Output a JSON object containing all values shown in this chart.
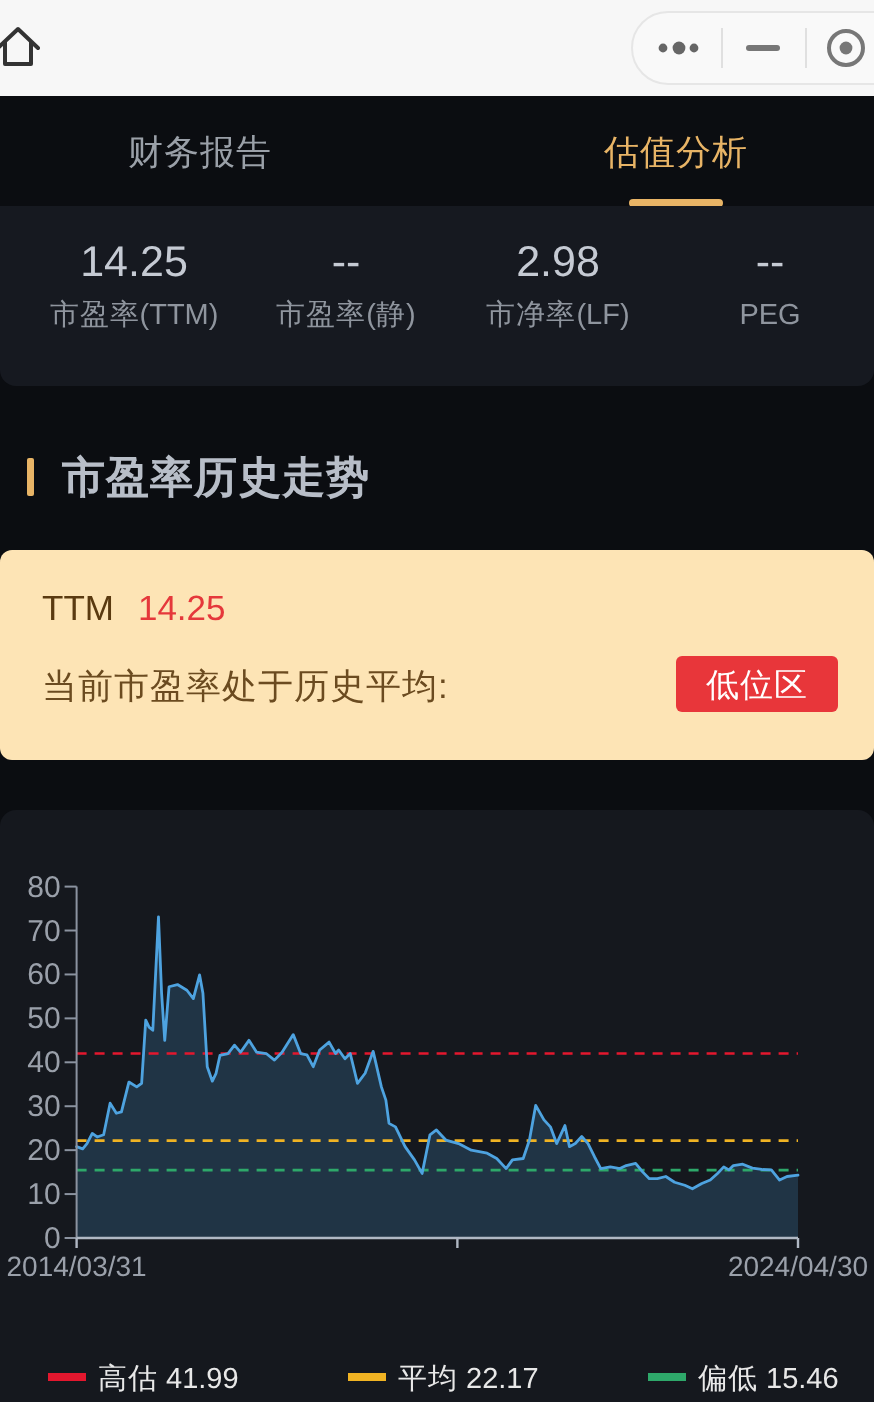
{
  "chart_data": [
    {
      "type": "other",
      "annotations": [
        "财务报告",
        "估值分析"
      ]
    },
    {
      "type": "other",
      "annotations": [
        "14.25",
        "--",
        "2.98",
        "--",
        "市盈率(TTM)",
        "市盈率(静)",
        "市净率(LF)",
        "PEG"
      ]
    },
    {
      "type": "other",
      "title": "市盈率历史走势",
      "annotations": [
        "TTM",
        "14.25",
        "当前市盈率处于历史平均:",
        "低位区"
      ]
    },
    {
      "type": "area",
      "color": "#4ea3e0",
      "x": [
        "2014-03-31",
        "2014-05-01",
        "2014-05-23",
        "2014-06-19",
        "2014-07-14",
        "2014-08-16",
        "2014-09-18",
        "2014-10-20",
        "2014-11-15",
        "2014-12-23",
        "2015-02-01",
        "2015-02-26",
        "2015-03-19",
        "2015-04-05",
        "2015-04-24",
        "2015-05-23",
        "2015-06-08",
        "2015-06-24",
        "2015-07-16",
        "2015-08-28",
        "2015-10-15",
        "2015-11-17",
        "2015-12-19",
        "2016-01-05",
        "2016-01-27",
        "2016-02-22",
        "2016-03-12",
        "2016-04-01",
        "2016-05-12",
        "2016-06-14",
        "2016-07-15",
        "2016-08-27",
        "2016-10-05",
        "2016-11-23",
        "2017-01-04",
        "2017-02-12",
        "2017-04-10",
        "2017-05-18",
        "2017-06-19",
        "2017-07-21",
        "2017-08-23",
        "2017-10-10",
        "2017-11-12",
        "2017-11-28",
        "2017-12-30",
        "2018-01-26",
        "2018-03-04",
        "2018-04-12",
        "2018-05-23",
        "2018-07-04",
        "2018-07-27",
        "2018-08-12",
        "2018-09-14",
        "2018-11-02",
        "2018-12-20",
        "2019-01-28",
        "2019-03-09",
        "2019-04-11",
        "2019-05-29",
        "2019-08-02",
        "2019-10-06",
        "2019-12-26",
        "2020-02-13",
        "2020-04-01",
        "2020-05-03",
        "2020-06-27",
        "2020-07-29",
        "2020-08-30",
        "2020-10-11",
        "2020-11-13",
        "2020-12-15",
        "2021-01-26",
        "2021-02-18",
        "2021-03-20",
        "2021-04-22",
        "2021-05-24",
        "2021-06-26",
        "2021-07-28",
        "2021-09-15",
        "2021-11-03",
        "2021-12-05",
        "2022-01-22",
        "2022-02-28",
        "2022-04-02",
        "2022-05-13",
        "2022-06-25",
        "2022-08-09",
        "2022-09-30",
        "2022-11-08",
        "2022-12-26",
        "2023-02-07",
        "2023-03-16",
        "2023-04-17",
        "2023-05-13",
        "2023-06-05",
        "2023-07-23",
        "2023-09-10",
        "2023-10-28",
        "2023-12-16",
        "2024-01-27",
        "2024-03-05",
        "2024-04-30"
      ],
      "values": [
        20.8,
        20.3,
        21.5,
        23.8,
        23.0,
        23.5,
        30.7,
        28.4,
        28.7,
        35.5,
        34.4,
        35.2,
        49.6,
        48.0,
        47.3,
        73.1,
        55.7,
        45.0,
        57.2,
        57.7,
        56.4,
        54.5,
        59.9,
        55.7,
        39.0,
        35.7,
        37.5,
        41.6,
        42.0,
        43.9,
        42.3,
        45.0,
        42.3,
        42.0,
        40.5,
        42.3,
        46.3,
        42.0,
        41.7,
        39.0,
        42.8,
        44.6,
        42.0,
        42.8,
        40.8,
        42.0,
        35.2,
        37.5,
        42.5,
        34.4,
        31.4,
        26.1,
        25.3,
        20.8,
        17.8,
        14.7,
        23.5,
        24.6,
        22.3,
        21.5,
        20.0,
        19.3,
        18.1,
        15.8,
        17.8,
        18.1,
        22.3,
        30.2,
        26.9,
        25.3,
        21.5,
        25.6,
        20.8,
        21.5,
        23.1,
        21.5,
        18.5,
        15.8,
        16.2,
        15.8,
        16.5,
        17.0,
        15.0,
        13.5,
        13.5,
        14.0,
        12.7,
        12.0,
        11.2,
        12.4,
        13.2,
        14.7,
        16.2,
        15.5,
        16.5,
        16.8,
        15.9,
        15.6,
        15.5,
        13.2,
        14.0,
        14.3
      ],
      "xlim": [
        "2014-03-31",
        "2024-04-30"
      ],
      "xticks": [
        {
          "value": "2014-03-31",
          "label": "2014/03/31"
        },
        {
          "value": "2019-07-27",
          "label": null
        },
        {
          "value": "2024-04-30",
          "label": "2024/04/30"
        }
      ],
      "ylim": [
        0,
        80
      ],
      "yticks": [
        0,
        10,
        20,
        30,
        40,
        50,
        60,
        70,
        80
      ],
      "ref_lines": [
        {
          "axis": "y",
          "value": 41.99,
          "label": "高估 41.99",
          "color": "#e3172e",
          "line_style": "dashed"
        },
        {
          "axis": "y",
          "value": 22.17,
          "label": "平均 22.17",
          "color": "#f0b323",
          "line_style": "dashed"
        },
        {
          "axis": "y",
          "value": 15.46,
          "label": "偏低 15.46",
          "color": "#2ea86a",
          "line_style": "dashed"
        }
      ],
      "legend": "bottom"
    }
  ]
}
